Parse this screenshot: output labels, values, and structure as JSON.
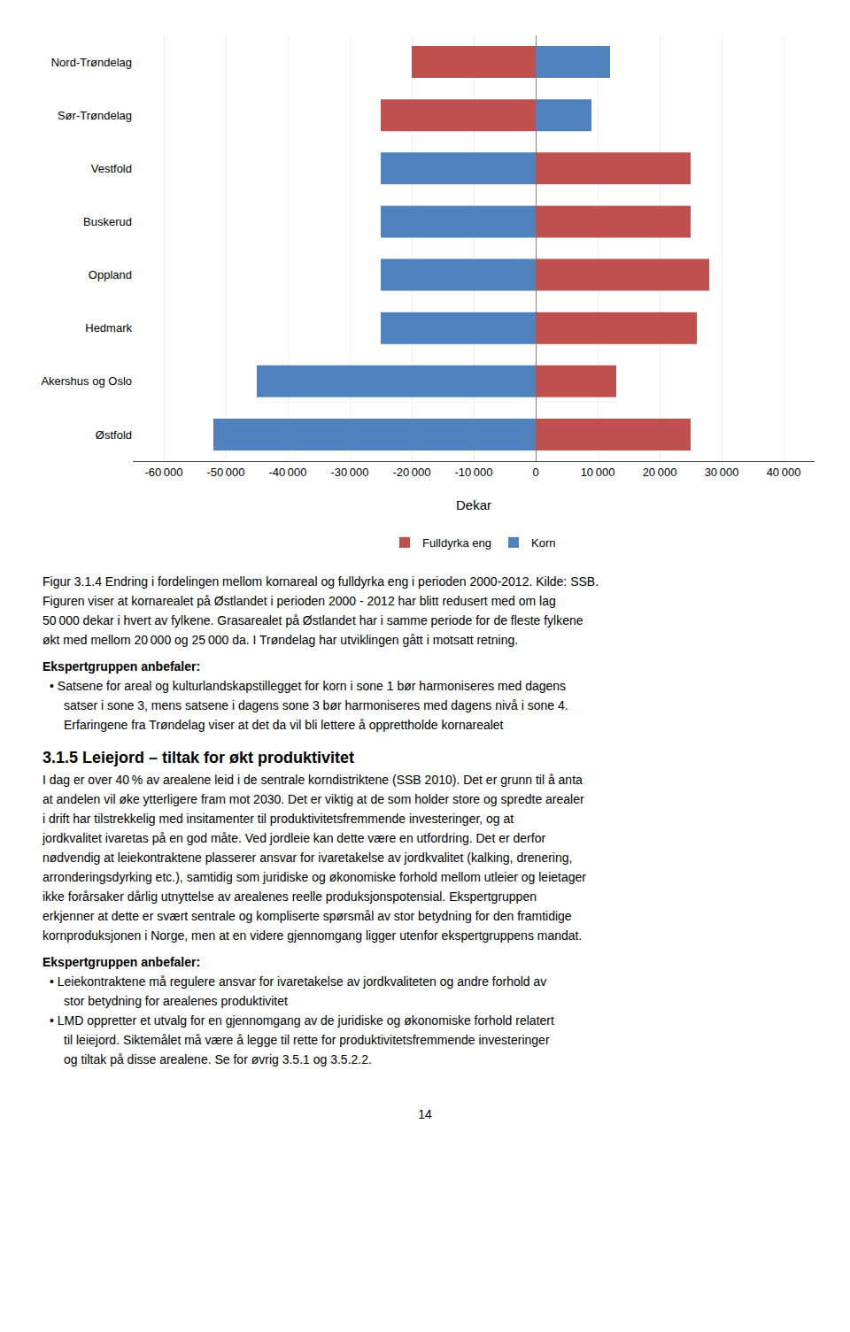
{
  "chart_data": {
    "type": "bar",
    "orientation": "horizontal",
    "categories": [
      "Nord-Trøndelag",
      "Sør-Trøndelag",
      "Vestfold",
      "Buskerud",
      "Oppland",
      "Hedmark",
      "Akershus og Oslo",
      "Østfold"
    ],
    "series": [
      {
        "name": "Fulldyrka eng",
        "color": "#C0504D",
        "values": [
          -20000,
          -25000,
          25000,
          25000,
          28000,
          26000,
          13000,
          25000
        ]
      },
      {
        "name": "Korn",
        "color": "#4F81BD",
        "values": [
          12000,
          9000,
          -25000,
          -25000,
          -25000,
          -25000,
          -45000,
          -52000
        ]
      }
    ],
    "xlabel": "Dekar",
    "xlim": [
      -65000,
      45000
    ],
    "xticks": [
      {
        "value": -60000,
        "label": "-60 000"
      },
      {
        "value": -50000,
        "label": "-50 000"
      },
      {
        "value": -40000,
        "label": "-40 000"
      },
      {
        "value": -30000,
        "label": "-30 000"
      },
      {
        "value": -20000,
        "label": "-20 000"
      },
      {
        "value": -10000,
        "label": "-10 000"
      },
      0,
      {
        "value": 10000,
        "label": "10 000"
      },
      {
        "value": 20000,
        "label": "20 000"
      },
      {
        "value": 30000,
        "label": "30 000"
      },
      {
        "value": 40000,
        "label": "40 000"
      }
    ],
    "grid": true,
    "legend": "bottom",
    "annotations": [
      "Figur 3.1.4 Endring i fordelingen mellom kornareal og fulldyrka eng i perioden 2000-2012. Kilde: SSB.",
      "Figuren viser at kornarealet på Østlandet i perioden 2000 - 2012 har blitt redusert med om lag",
      "50 000 dekar i hvert av fylkene. Grasarealet på Østlandet har i samme periode for de fleste fylkene",
      "økt med mellom 20 000 og 25 000 da. I Trøndelag har utviklingen gått i motsatt retning.",
      "Ekspertgruppen anbefaler:",
      "• Satsene for areal og kulturlandskapstillegget for korn i sone 1 bør harmoniseres med dagens",
      "satser i sone 3, mens satsene i dagens sone 3 bør harmoniseres med dagens nivå i sone 4.",
      "Erfaringene fra Trøndelag viser at det da vil bli lettere å opprettholde kornarealet",
      "3.1.5 Leiejord – tiltak for økt produktivitet",
      "I dag er over 40 % av arealene leid i de sentrale korndistriktene (SSB 2010). Det er grunn til å anta",
      "at andelen vil øke ytterligere fram mot 2030. Det er viktig at de som holder store og spredte arealer",
      "i drift har tilstrekkelig med insitamenter til produktivitetsfremmende investeringer, og at",
      "jordkvalitet ivaretas på en god måte. Ved jordleie kan dette være en utfordring. Det er derfor",
      "nødvendig at leiekontraktene plasserer ansvar for ivaretakelse av jordkvalitet (kalking, drenering,",
      "arronderingsdyrking etc.), samtidig som juridiske og økonomiske forhold mellom utleier og leietager",
      "ikke forårsaker dårlig utnyttelse av arealenes reelle produksjonspotensial. Ekspertgruppen",
      "erkjenner at dette er svært sentrale og kompliserte spørsmål av stor betydning for den framtidige",
      "kornproduksjonen i Norge, men at en videre gjennomgang ligger utenfor ekspertgruppens mandat.",
      "Ekspertgruppen anbefaler:",
      "• Leiekontraktene må regulere ansvar for ivaretakelse av jordkvaliteten og andre forhold av",
      "stor betydning for arealenes produktivitet",
      "• LMD oppretter et utvalg for en gjennomgang av de juridiske og økonomiske forhold relatert",
      "til leiejord. Siktemålet må være å legge til rette for produktivitetsfremmende investeringer",
      "og tiltak på disse arealene. Se for øvrig 3.5.1 og 3.5.2.2.",
      "14"
    ]
  }
}
